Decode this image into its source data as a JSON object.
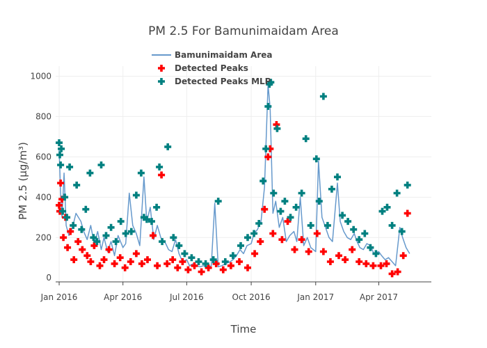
{
  "chart_data": {
    "type": "line",
    "title": "PM 2.5 For Bamunimaidam Area",
    "xlabel": "Time",
    "ylabel": "PM 2.5 (μg/m³)",
    "x_axis_type": "date",
    "xlim": [
      "2015-12-27",
      "2017-06-15"
    ],
    "ylim": [
      -20,
      1050
    ],
    "x_ticks": [
      "2016-01-01",
      "2016-04-01",
      "2016-07-01",
      "2016-10-01",
      "2017-01-01",
      "2017-04-01"
    ],
    "x_tick_labels": [
      "Jan 2016",
      "Apr 2016",
      "Jul 2016",
      "Oct 2016",
      "Jan 2017",
      "Apr 2017"
    ],
    "y_ticks": [
      0,
      200,
      400,
      600,
      800,
      1000
    ],
    "y_tick_labels": [
      "0",
      "200",
      "400",
      "600",
      "800",
      "1000"
    ],
    "grid": true,
    "legend_position": "top",
    "series": [
      {
        "name": "Bamunimaidam Area",
        "type": "line",
        "color": "#6699cc",
        "x": [
          "2016-01-01",
          "2016-01-03",
          "2016-01-05",
          "2016-01-08",
          "2016-01-11",
          "2016-01-15",
          "2016-01-20",
          "2016-01-25",
          "2016-02-01",
          "2016-02-05",
          "2016-02-10",
          "2016-02-15",
          "2016-02-20",
          "2016-02-25",
          "2016-03-01",
          "2016-03-05",
          "2016-03-10",
          "2016-03-15",
          "2016-03-20",
          "2016-03-25",
          "2016-04-01",
          "2016-04-05",
          "2016-04-10",
          "2016-04-15",
          "2016-04-20",
          "2016-04-25",
          "2016-05-01",
          "2016-05-05",
          "2016-05-10",
          "2016-05-15",
          "2016-05-20",
          "2016-05-25",
          "2016-06-01",
          "2016-06-05",
          "2016-06-10",
          "2016-06-15",
          "2016-06-20",
          "2016-06-25",
          "2016-07-01",
          "2016-07-05",
          "2016-07-10",
          "2016-07-15",
          "2016-07-20",
          "2016-07-25",
          "2016-08-01",
          "2016-08-05",
          "2016-08-10",
          "2016-08-15",
          "2016-08-20",
          "2016-08-25",
          "2016-09-01",
          "2016-09-05",
          "2016-09-10",
          "2016-09-15",
          "2016-09-20",
          "2016-09-25",
          "2016-10-01",
          "2016-10-05",
          "2016-10-10",
          "2016-10-15",
          "2016-10-20",
          "2016-10-25",
          "2016-10-28",
          "2016-11-01",
          "2016-11-05",
          "2016-11-10",
          "2016-11-15",
          "2016-11-20",
          "2016-11-25",
          "2016-12-01",
          "2016-12-05",
          "2016-12-10",
          "2016-12-15",
          "2016-12-20",
          "2016-12-25",
          "2017-01-01",
          "2017-01-05",
          "2017-01-10",
          "2017-01-15",
          "2017-01-20",
          "2017-01-25",
          "2017-02-01",
          "2017-02-05",
          "2017-02-10",
          "2017-02-15",
          "2017-02-20",
          "2017-02-25",
          "2017-03-01",
          "2017-03-05",
          "2017-03-10",
          "2017-03-15",
          "2017-03-20",
          "2017-03-25",
          "2017-04-01",
          "2017-04-05",
          "2017-04-10",
          "2017-04-15",
          "2017-04-20",
          "2017-04-25",
          "2017-05-01",
          "2017-05-05",
          "2017-05-10",
          "2017-05-15"
        ],
        "y": [
          640,
          420,
          300,
          520,
          260,
          210,
          250,
          320,
          280,
          230,
          190,
          260,
          170,
          230,
          140,
          200,
          130,
          180,
          110,
          210,
          150,
          170,
          420,
          260,
          220,
          160,
          500,
          280,
          350,
          190,
          260,
          200,
          170,
          140,
          130,
          190,
          120,
          80,
          90,
          60,
          70,
          60,
          55,
          60,
          55,
          60,
          370,
          55,
          60,
          70,
          80,
          90,
          110,
          140,
          120,
          160,
          170,
          220,
          240,
          280,
          450,
          960,
          840,
          320,
          380,
          250,
          300,
          180,
          210,
          230,
          180,
          400,
          160,
          200,
          150,
          130,
          580,
          300,
          250,
          200,
          180,
          470,
          280,
          230,
          200,
          190,
          220,
          180,
          150,
          140,
          170,
          160,
          120,
          130,
          110,
          90,
          100,
          80,
          60,
          250,
          200,
          150,
          120
        ]
      },
      {
        "name": "Detected Peaks",
        "type": "scatter",
        "color": "#ff0000",
        "x": [
          "2016-01-01",
          "2016-01-02",
          "2016-01-03",
          "2016-01-05",
          "2016-01-07",
          "2016-01-10",
          "2016-01-13",
          "2016-01-17",
          "2016-01-22",
          "2016-01-28",
          "2016-02-03",
          "2016-02-10",
          "2016-02-15",
          "2016-02-20",
          "2016-02-28",
          "2016-03-05",
          "2016-03-12",
          "2016-03-20",
          "2016-03-28",
          "2016-04-04",
          "2016-04-12",
          "2016-04-20",
          "2016-04-28",
          "2016-05-06",
          "2016-05-14",
          "2016-05-20",
          "2016-05-26",
          "2016-06-03",
          "2016-06-11",
          "2016-06-18",
          "2016-06-25",
          "2016-07-03",
          "2016-07-12",
          "2016-07-22",
          "2016-08-01",
          "2016-08-12",
          "2016-08-22",
          "2016-09-02",
          "2016-09-14",
          "2016-09-26",
          "2016-10-06",
          "2016-10-14",
          "2016-10-20",
          "2016-10-25",
          "2016-10-28",
          "2016-11-01",
          "2016-11-06",
          "2016-11-14",
          "2016-11-22",
          "2016-12-02",
          "2016-12-12",
          "2016-12-22",
          "2017-01-03",
          "2017-01-12",
          "2017-01-22",
          "2017-02-03",
          "2017-02-12",
          "2017-02-22",
          "2017-03-04",
          "2017-03-14",
          "2017-03-24",
          "2017-04-04",
          "2017-04-12",
          "2017-04-20",
          "2017-04-28",
          "2017-05-06",
          "2017-05-12"
        ],
        "y": [
          360,
          330,
          470,
          390,
          200,
          300,
          150,
          230,
          90,
          180,
          140,
          110,
          80,
          160,
          60,
          90,
          140,
          70,
          100,
          50,
          80,
          120,
          70,
          90,
          210,
          60,
          510,
          70,
          90,
          50,
          80,
          40,
          60,
          30,
          50,
          70,
          40,
          60,
          80,
          50,
          120,
          180,
          340,
          600,
          640,
          220,
          760,
          190,
          280,
          140,
          190,
          130,
          220,
          130,
          80,
          110,
          90,
          140,
          80,
          70,
          60,
          60,
          70,
          20,
          30,
          110,
          320
        ]
      },
      {
        "name": "Detected Peaks MLP",
        "type": "scatter",
        "color": "#008080",
        "x": [
          "2016-01-01",
          "2016-01-02",
          "2016-01-03",
          "2016-01-04",
          "2016-01-06",
          "2016-01-09",
          "2016-01-12",
          "2016-01-16",
          "2016-01-21",
          "2016-01-26",
          "2016-02-02",
          "2016-02-08",
          "2016-02-14",
          "2016-02-19",
          "2016-02-24",
          "2016-03-01",
          "2016-03-08",
          "2016-03-15",
          "2016-03-22",
          "2016-03-29",
          "2016-04-05",
          "2016-04-13",
          "2016-04-20",
          "2016-04-27",
          "2016-05-01",
          "2016-05-05",
          "2016-05-12",
          "2016-05-19",
          "2016-05-23",
          "2016-05-27",
          "2016-06-04",
          "2016-06-12",
          "2016-06-20",
          "2016-06-28",
          "2016-07-08",
          "2016-07-18",
          "2016-07-28",
          "2016-08-08",
          "2016-08-15",
          "2016-08-25",
          "2016-09-05",
          "2016-09-16",
          "2016-09-26",
          "2016-10-05",
          "2016-10-12",
          "2016-10-18",
          "2016-10-22",
          "2016-10-25",
          "2016-10-27",
          "2016-10-29",
          "2016-11-02",
          "2016-11-07",
          "2016-11-12",
          "2016-11-18",
          "2016-11-26",
          "2016-12-04",
          "2016-12-12",
          "2016-12-18",
          "2016-12-25",
          "2017-01-02",
          "2017-01-06",
          "2017-01-12",
          "2017-01-18",
          "2017-01-24",
          "2017-02-01",
          "2017-02-08",
          "2017-02-16",
          "2017-02-24",
          "2017-03-04",
          "2017-03-12",
          "2017-03-20",
          "2017-03-28",
          "2017-04-06",
          "2017-04-13",
          "2017-04-20",
          "2017-04-27",
          "2017-05-04",
          "2017-05-12"
        ],
        "y": [
          670,
          610,
          560,
          640,
          330,
          400,
          300,
          550,
          260,
          460,
          240,
          340,
          520,
          200,
          180,
          560,
          210,
          250,
          180,
          280,
          220,
          230,
          410,
          520,
          300,
          290,
          280,
          350,
          550,
          180,
          650,
          200,
          160,
          120,
          100,
          80,
          70,
          90,
          380,
          80,
          110,
          160,
          200,
          220,
          270,
          480,
          640,
          850,
          960,
          970,
          420,
          740,
          330,
          380,
          300,
          350,
          420,
          690,
          260,
          590,
          380,
          900,
          260,
          440,
          500,
          310,
          280,
          240,
          190,
          220,
          150,
          120,
          330,
          350,
          260,
          420,
          230,
          460
        ]
      }
    ]
  },
  "legend": {
    "items": [
      "Bamunimaidam Area",
      "Detected Peaks",
      "Detected Peaks MLP"
    ]
  }
}
